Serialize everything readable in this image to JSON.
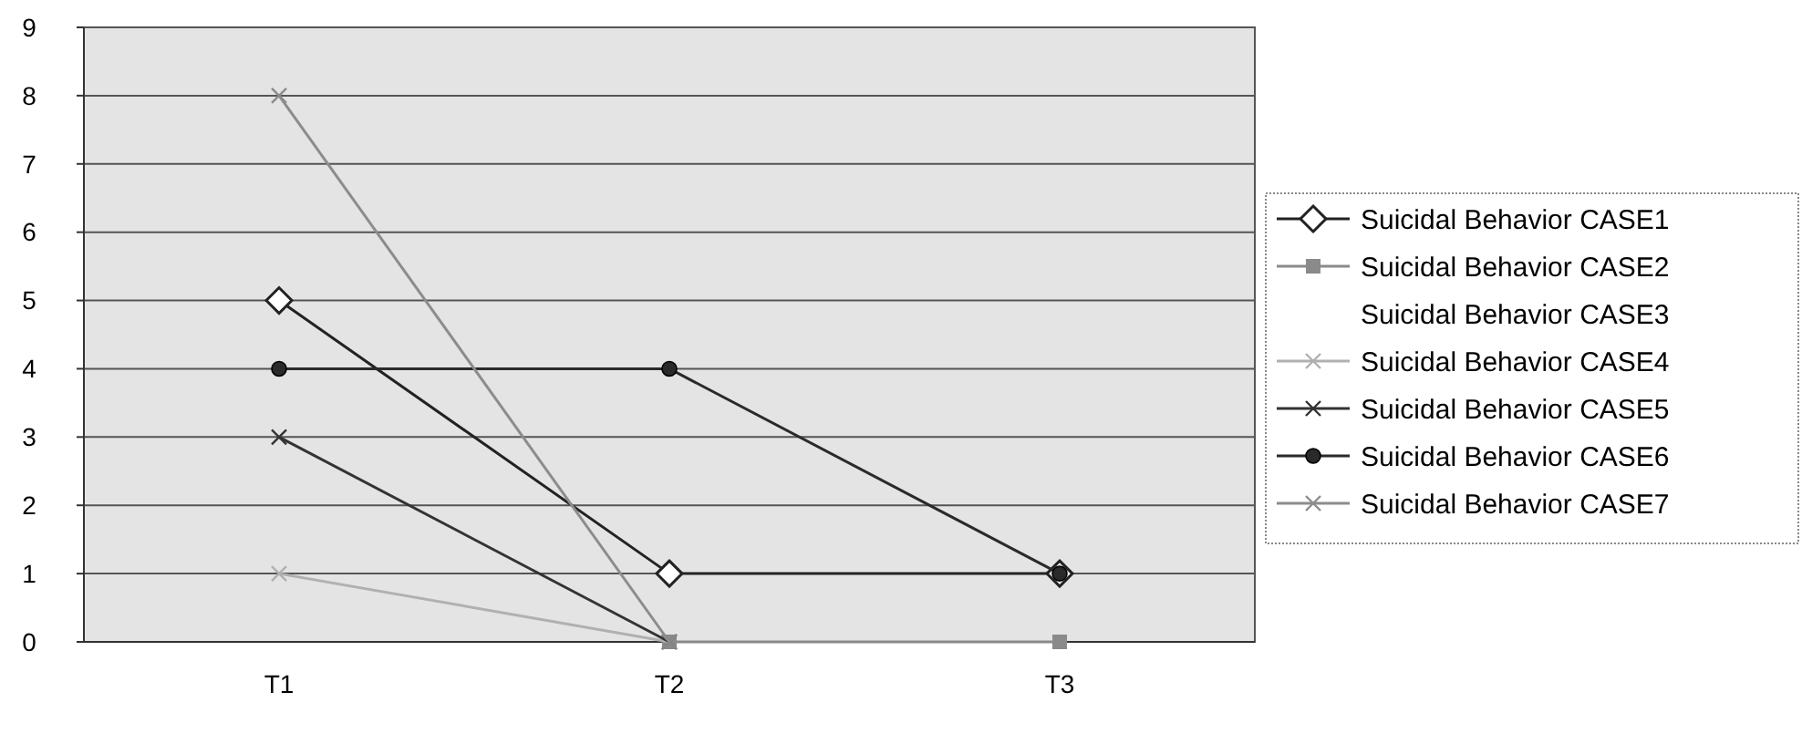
{
  "chart_data": {
    "type": "line",
    "categories": [
      "T1",
      "T2",
      "T3"
    ],
    "ylim": [
      0,
      9
    ],
    "yticks": [
      0,
      1,
      2,
      3,
      4,
      5,
      6,
      7,
      8,
      9
    ],
    "grid": "y",
    "legend": "right",
    "series": [
      {
        "name": "Suicidal Behavior CASE1",
        "color": "#222222",
        "marker": "diamond",
        "values": [
          5,
          1,
          1
        ]
      },
      {
        "name": "Suicidal Behavior CASE2",
        "color": "#8a8a8a",
        "marker": "square",
        "values": [
          null,
          0,
          0
        ]
      },
      {
        "name": "Suicidal Behavior CASE3",
        "marker": "none",
        "values": [
          null,
          null,
          null
        ]
      },
      {
        "name": "Suicidal Behavior CASE4",
        "color": "#b0b0b0",
        "marker": "cross",
        "values": [
          1,
          0,
          null
        ]
      },
      {
        "name": "Suicidal Behavior CASE5",
        "color": "#333333",
        "marker": "cross",
        "values": [
          3,
          0,
          null
        ]
      },
      {
        "name": "Suicidal Behavior CASE6",
        "color": "#2a2a2a",
        "marker": "circle",
        "values": [
          4,
          4,
          1
        ]
      },
      {
        "name": "Suicidal Behavior CASE7",
        "color": "#8c8c8c",
        "marker": "cross",
        "values": [
          8,
          0,
          null
        ]
      }
    ]
  }
}
